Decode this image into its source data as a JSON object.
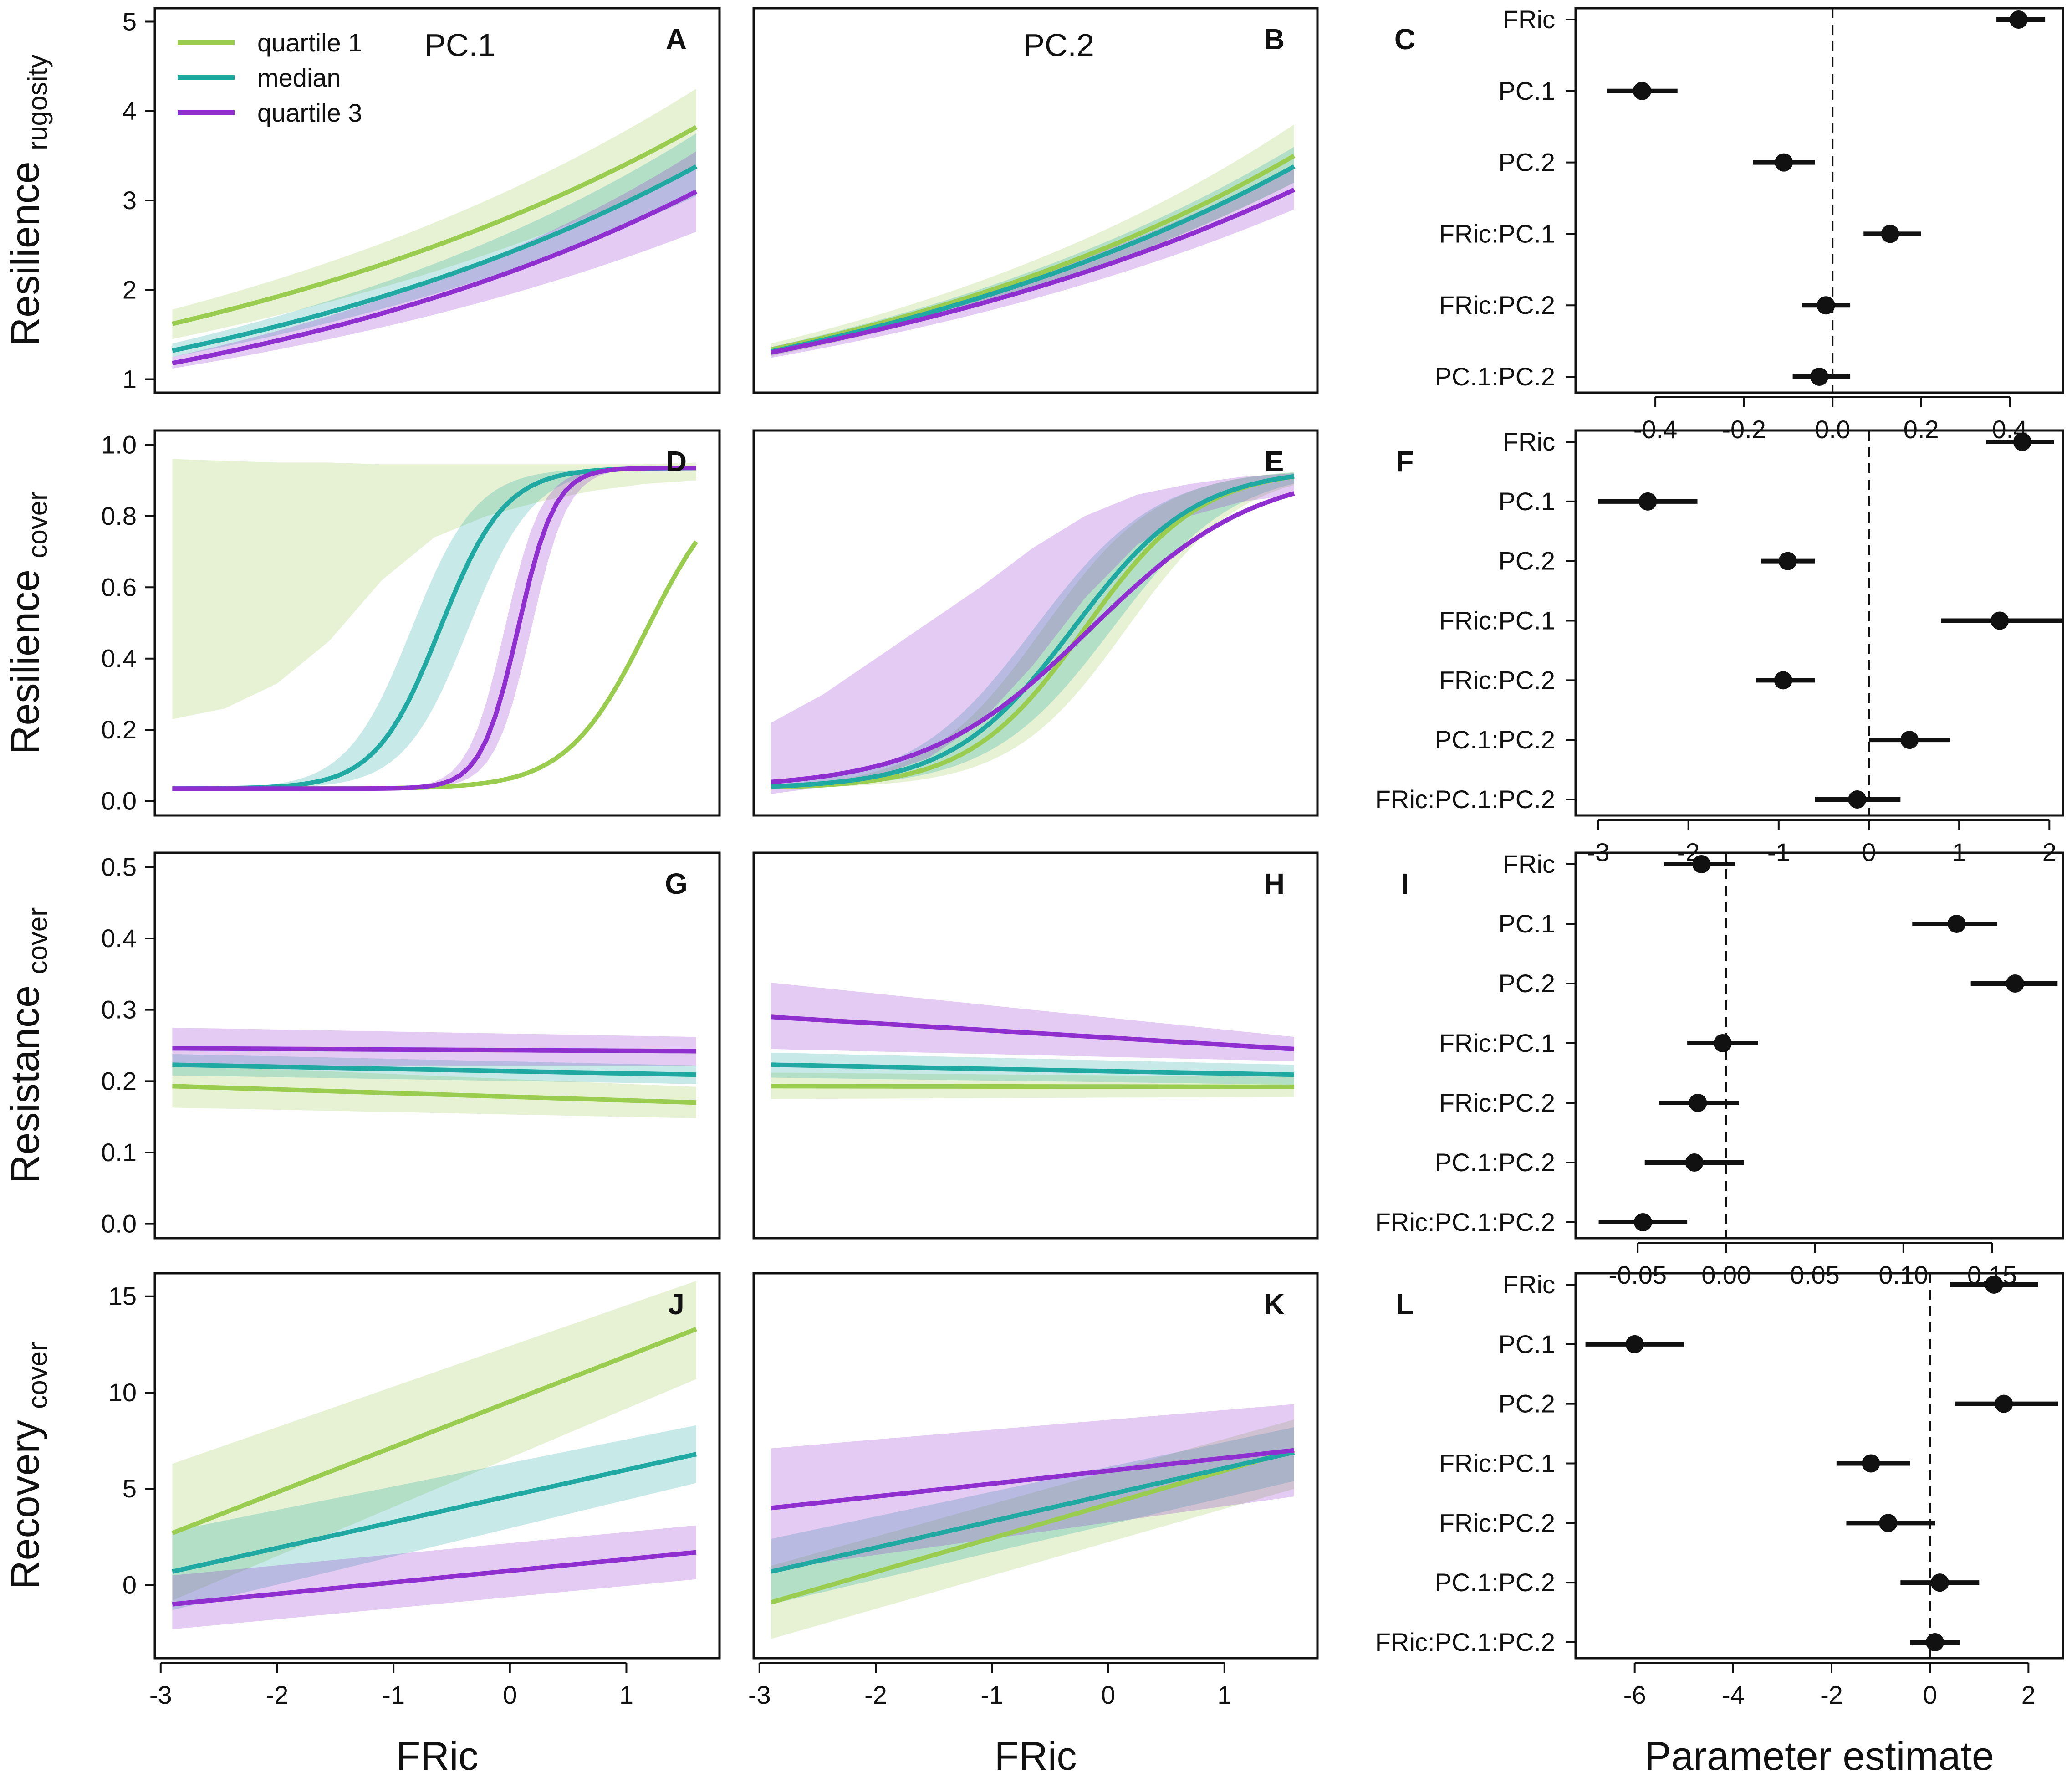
{
  "chart_data": {
    "type": "multi-panel",
    "colors": {
      "q1": "#9acd4f",
      "median": "#1fa9a2",
      "q3": "#8f2fd0",
      "estimate": "#111111"
    },
    "legend": [
      {
        "key": "q1",
        "label": "quartile 1"
      },
      {
        "key": "median",
        "label": "median"
      },
      {
        "key": "q3",
        "label": "quartile 3"
      }
    ],
    "rows": [
      {
        "ylabel_main": "Resilience",
        "ylabel_sub": "rugosity",
        "ylim": [
          0.85,
          5.15
        ],
        "yticks": [
          1,
          2,
          3,
          4,
          5
        ],
        "ytick_labels": [
          "1",
          "2",
          "3",
          "4",
          "5"
        ],
        "panels": [
          {
            "letter": "A",
            "title": "PC.1",
            "legend": true,
            "series": {
              "q1": {
                "y0": 1.62,
                "y1": 3.82,
                "lo0": 1.45,
                "lo1": 3.35,
                "hi0": 1.78,
                "hi1": 4.25
              },
              "median": {
                "y0": 1.32,
                "y1": 3.38,
                "lo0": 1.25,
                "lo1": 3.05,
                "hi0": 1.4,
                "hi1": 3.75
              },
              "q3": {
                "y0": 1.18,
                "y1": 3.1,
                "lo0": 1.12,
                "lo1": 2.65,
                "hi0": 1.25,
                "hi1": 3.55
              }
            }
          },
          {
            "letter": "B",
            "title": "PC.2",
            "legend": false,
            "series": {
              "q1": {
                "y0": 1.33,
                "y1": 3.5,
                "lo0": 1.26,
                "lo1": 3.2,
                "hi0": 1.4,
                "hi1": 3.85
              },
              "median": {
                "y0": 1.31,
                "y1": 3.38,
                "lo0": 1.27,
                "lo1": 3.2,
                "hi0": 1.36,
                "hi1": 3.6
              },
              "q3": {
                "y0": 1.3,
                "y1": 3.12,
                "lo0": 1.24,
                "lo1": 2.9,
                "hi0": 1.36,
                "hi1": 3.4
              }
            }
          }
        ],
        "estimates": {
          "letter": "C",
          "xlim": [
            -0.58,
            0.52
          ],
          "xticks": [
            -0.4,
            -0.2,
            0.0,
            0.2,
            0.4
          ],
          "xtick_labels": [
            "-0.4",
            "-0.2",
            "0.0",
            "0.2",
            "0.4"
          ],
          "terms": [
            {
              "label": "FRic",
              "est": 0.42,
              "lo": 0.37,
              "hi": 0.48
            },
            {
              "label": "PC.1",
              "est": -0.43,
              "lo": -0.51,
              "hi": -0.35
            },
            {
              "label": "PC.2",
              "est": -0.11,
              "lo": -0.18,
              "hi": -0.04
            },
            {
              "label": "FRic:PC.1",
              "est": 0.13,
              "lo": 0.07,
              "hi": 0.2
            },
            {
              "label": "FRic:PC.2",
              "est": -0.015,
              "lo": -0.07,
              "hi": 0.04
            },
            {
              "label": "PC.1:PC.2",
              "est": -0.03,
              "lo": -0.09,
              "hi": 0.04
            }
          ]
        }
      },
      {
        "ylabel_main": "Resilience",
        "ylabel_sub": "cover",
        "ylim": [
          -0.04,
          1.04
        ],
        "yticks": [
          0.0,
          0.2,
          0.4,
          0.6,
          0.8,
          1.0
        ],
        "ytick_labels": [
          "0.0",
          "0.2",
          "0.4",
          "0.6",
          "0.8",
          "1.0"
        ],
        "panels": [
          {
            "letter": "D",
            "title": "",
            "legend": false,
            "series": {
              "q1": {
                "logit": [
                  1.18,
                  2.88,
                  0.0
                ],
                "lo": [
                  0.23,
                  0.26,
                  0.33,
                  0.45,
                  0.62,
                  0.74,
                  0.8,
                  0.84,
                  0.87,
                  0.89,
                  0.9
                ],
                "hi": [
                  0.96,
                  0.955,
                  0.95,
                  0.95,
                  0.945,
                  0.945,
                  0.945,
                  0.945,
                  0.945,
                  0.945,
                  0.95
                ]
              },
              "median": {
                "logit": [
                  -0.6,
                  3.6,
                  0.0
                ],
                "band": 0.55
              },
              "q3": {
                "logit": [
                  0.07,
                  6.3,
                  0.12
                ],
                "band": 0.45
              }
            }
          },
          {
            "letter": "E",
            "title": "",
            "legend": false,
            "series": {
              "q1": {
                "logit": [
                  -0.2,
                  2.0,
                  0.0
                ],
                "band": 0.45
              },
              "median": {
                "logit": [
                  -0.3,
                  1.9,
                  0.0
                ],
                "band": 0.4
              },
              "q3": {
                "logit": [
                  -0.15,
                  1.4,
                  0.0
                ],
                "lo": [
                  0.02,
                  0.04,
                  0.07,
                  0.12,
                  0.22,
                  0.38,
                  0.57,
                  0.72,
                  0.8,
                  0.84,
                  0.86
                ],
                "hi": [
                  0.22,
                  0.3,
                  0.4,
                  0.5,
                  0.6,
                  0.71,
                  0.8,
                  0.86,
                  0.89,
                  0.91,
                  0.92
                ]
              }
            }
          }
        ],
        "estimates": {
          "letter": "F",
          "xlim": [
            -3.25,
            2.15
          ],
          "xticks": [
            -3,
            -2,
            -1,
            0,
            1,
            2
          ],
          "xtick_labels": [
            "-3",
            "-2",
            "-1",
            "0",
            "1",
            "2"
          ],
          "terms": [
            {
              "label": "FRic",
              "est": 1.7,
              "lo": 1.3,
              "hi": 2.05
            },
            {
              "label": "PC.1",
              "est": -2.45,
              "lo": -3.0,
              "hi": -1.9
            },
            {
              "label": "PC.2",
              "est": -0.9,
              "lo": -1.2,
              "hi": -0.6
            },
            {
              "label": "FRic:PC.1",
              "est": 1.45,
              "lo": 0.8,
              "hi": 2.15
            },
            {
              "label": "FRic:PC.2",
              "est": -0.95,
              "lo": -1.25,
              "hi": -0.6
            },
            {
              "label": "PC.1:PC.2",
              "est": 0.45,
              "lo": 0.0,
              "hi": 0.9
            },
            {
              "label": "FRic:PC.1:PC.2",
              "est": -0.13,
              "lo": -0.6,
              "hi": 0.35
            }
          ]
        }
      },
      {
        "ylabel_main": "Resistance",
        "ylabel_sub": "cover",
        "ylim": [
          -0.02,
          0.52
        ],
        "yticks": [
          0.0,
          0.1,
          0.2,
          0.3,
          0.4,
          0.5
        ],
        "ytick_labels": [
          "0.0",
          "0.1",
          "0.2",
          "0.3",
          "0.4",
          "0.5"
        ],
        "panels": [
          {
            "letter": "G",
            "title": "",
            "legend": false,
            "series": {
              "q1": {
                "y0": 0.193,
                "y1": 0.17,
                "lo0": 0.163,
                "lo1": 0.148,
                "hi0": 0.223,
                "hi1": 0.192
              },
              "median": {
                "y0": 0.223,
                "y1": 0.209,
                "lo0": 0.208,
                "lo1": 0.196,
                "hi0": 0.238,
                "hi1": 0.222
              },
              "q3": {
                "y0": 0.246,
                "y1": 0.242,
                "lo0": 0.222,
                "lo1": 0.222,
                "hi0": 0.275,
                "hi1": 0.262
              }
            }
          },
          {
            "letter": "H",
            "title": "",
            "legend": false,
            "series": {
              "q1": {
                "y0": 0.193,
                "y1": 0.192,
                "lo0": 0.175,
                "lo1": 0.178,
                "hi0": 0.212,
                "hi1": 0.206
              },
              "median": {
                "y0": 0.223,
                "y1": 0.209,
                "lo0": 0.205,
                "lo1": 0.195,
                "hi0": 0.24,
                "hi1": 0.223
              },
              "q3": {
                "y0": 0.29,
                "y1": 0.245,
                "lo0": 0.245,
                "lo1": 0.228,
                "hi0": 0.338,
                "hi1": 0.262
              }
            }
          }
        ],
        "estimates": {
          "letter": "I",
          "xlim": [
            -0.085,
            0.19
          ],
          "xticks": [
            -0.05,
            0.0,
            0.05,
            0.1,
            0.15
          ],
          "xtick_labels": [
            "-0.05",
            "0.00",
            "0.05",
            "0.10",
            "0.15"
          ],
          "terms": [
            {
              "label": "FRic",
              "est": -0.014,
              "lo": -0.035,
              "hi": 0.005
            },
            {
              "label": "PC.1",
              "est": 0.13,
              "lo": 0.105,
              "hi": 0.153
            },
            {
              "label": "PC.2",
              "est": 0.163,
              "lo": 0.138,
              "hi": 0.187
            },
            {
              "label": "FRic:PC.1",
              "est": -0.002,
              "lo": -0.022,
              "hi": 0.018
            },
            {
              "label": "FRic:PC.2",
              "est": -0.016,
              "lo": -0.038,
              "hi": 0.007
            },
            {
              "label": "PC.1:PC.2",
              "est": -0.018,
              "lo": -0.046,
              "hi": 0.01
            },
            {
              "label": "FRic:PC.1:PC.2",
              "est": -0.047,
              "lo": -0.072,
              "hi": -0.022
            }
          ]
        }
      },
      {
        "ylabel_main": "Recovery",
        "ylabel_sub": "cover",
        "ylim": [
          -3.8,
          16.2
        ],
        "yticks": [
          0,
          5,
          10,
          15
        ],
        "ytick_labels": [
          "0",
          "5",
          "10",
          "15"
        ],
        "panels": [
          {
            "letter": "J",
            "title": "",
            "legend": false,
            "series": {
              "q1": {
                "y0": 2.7,
                "y1": 13.3,
                "lo0": -0.8,
                "lo1": 10.7,
                "hi0": 6.3,
                "hi1": 15.8
              },
              "median": {
                "y0": 0.7,
                "y1": 6.8,
                "lo0": -1.3,
                "lo1": 5.3,
                "hi0": 2.8,
                "hi1": 8.3
              },
              "q3": {
                "y0": -1.0,
                "y1": 1.7,
                "lo0": -2.3,
                "lo1": 0.3,
                "hi0": 0.5,
                "hi1": 3.1
              }
            }
          },
          {
            "letter": "K",
            "title": "",
            "legend": false,
            "series": {
              "q1": {
                "y0": -0.9,
                "y1": 7.0,
                "lo0": -2.8,
                "lo1": 5.0,
                "hi0": 1.0,
                "hi1": 8.6
              },
              "median": {
                "y0": 0.7,
                "y1": 6.9,
                "lo0": -1.0,
                "lo1": 5.4,
                "hi0": 2.4,
                "hi1": 8.2
              },
              "q3": {
                "y0": 4.0,
                "y1": 7.0,
                "lo0": 0.8,
                "lo1": 4.6,
                "hi0": 7.1,
                "hi1": 9.4
              }
            }
          }
        ],
        "estimates": {
          "letter": "L",
          "xlim": [
            -7.2,
            2.7
          ],
          "xticks": [
            -6,
            -4,
            -2,
            0,
            2
          ],
          "xtick_labels": [
            "-6",
            "-4",
            "-2",
            "0",
            "2"
          ],
          "terms": [
            {
              "label": "FRic",
              "est": 1.3,
              "lo": 0.4,
              "hi": 2.2
            },
            {
              "label": "PC.1",
              "est": -6.0,
              "lo": -7.0,
              "hi": -5.0
            },
            {
              "label": "PC.2",
              "est": 1.5,
              "lo": 0.5,
              "hi": 2.6
            },
            {
              "label": "FRic:PC.1",
              "est": -1.2,
              "lo": -1.9,
              "hi": -0.4
            },
            {
              "label": "FRic:PC.2",
              "est": -0.85,
              "lo": -1.7,
              "hi": 0.1
            },
            {
              "label": "PC.1:PC.2",
              "est": 0.2,
              "lo": -0.6,
              "hi": 1.0
            },
            {
              "label": "FRic:PC.1:PC.2",
              "est": 0.1,
              "lo": -0.4,
              "hi": 0.6
            }
          ]
        }
      }
    ],
    "x_axis": {
      "label": "FRic",
      "xlim": [
        -3.05,
        1.8
      ],
      "xticks": [
        -3,
        -2,
        -1,
        0,
        1
      ],
      "xtick_labels": [
        "-3",
        "-2",
        "-1",
        "0",
        "1"
      ],
      "data_range": [
        -2.9,
        1.6
      ]
    },
    "estimate_xlabel": "Parameter estimate"
  }
}
